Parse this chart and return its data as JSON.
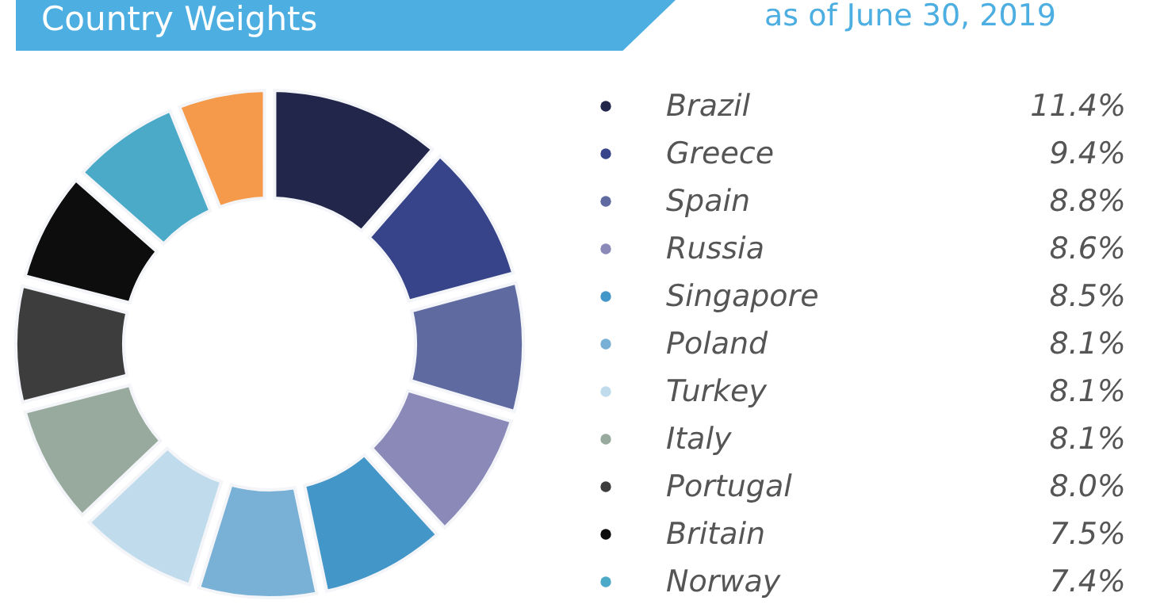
{
  "chart_data": {
    "type": "donut",
    "title": "Country Weights",
    "subtitle": "as of June 30, 2019",
    "categories": [
      "Brazil",
      "Greece",
      "Spain",
      "Russia",
      "Singapore",
      "Poland",
      "Turkey",
      "Italy",
      "Portugal",
      "Britain",
      "Norway",
      null
    ],
    "values": [
      11.4,
      9.4,
      8.8,
      8.6,
      8.5,
      8.1,
      8.1,
      8.1,
      8.0,
      7.5,
      7.4,
      6.1
    ],
    "value_labels": [
      "11.4%",
      "9.4%",
      "8.8%",
      "8.6%",
      "8.5%",
      "8.1%",
      "8.1%",
      "8.1%",
      "8.0%",
      "7.5%",
      "7.4%",
      null
    ],
    "colors": [
      "#22264a",
      "#37448a",
      "#5f6aa0",
      "#8a89b8",
      "#4396c8",
      "#78b0d6",
      "#c0dcec",
      "#98aa9e",
      "#3d3d3d",
      "#0d0d0d",
      "#4aaac8",
      "#f59a4a"
    ],
    "legend": "right"
  }
}
